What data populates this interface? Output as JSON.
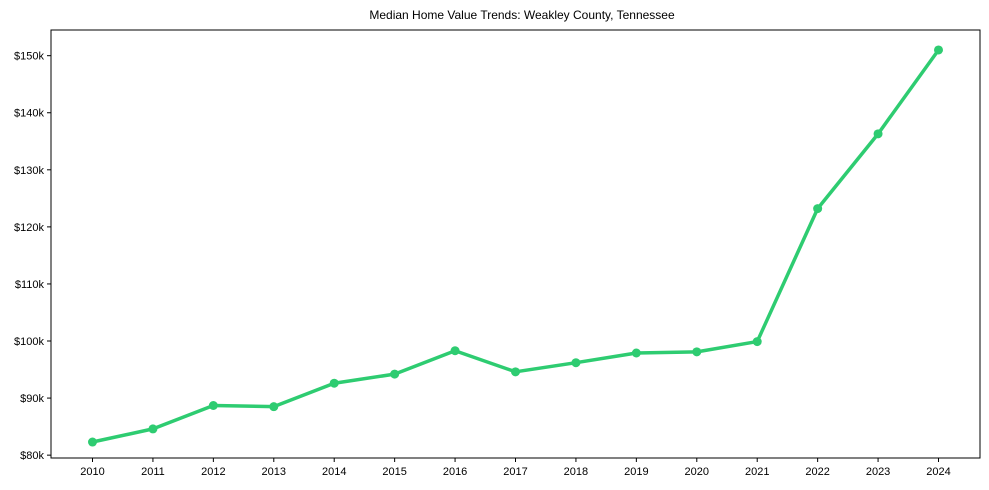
{
  "chart_data": {
    "type": "line",
    "title": "Median Home Value Trends: Weakley County, Tennessee",
    "xlabel": "",
    "ylabel": "",
    "categories": [
      "2010",
      "2011",
      "2012",
      "2013",
      "2014",
      "2015",
      "2016",
      "2017",
      "2018",
      "2019",
      "2020",
      "2021",
      "2022",
      "2023",
      "2024"
    ],
    "series": [
      {
        "name": "Median Home Value",
        "color": "#2ecc71",
        "values": [
          82300,
          84600,
          88700,
          88500,
          92600,
          94200,
          98300,
          94600,
          96200,
          97900,
          98100,
          99900,
          123200,
          136300,
          151000
        ]
      }
    ],
    "yticks": [
      80000,
      90000,
      100000,
      110000,
      120000,
      130000,
      140000,
      150000
    ],
    "ytick_labels": [
      "$80k",
      "$90k",
      "$100k",
      "$110k",
      "$120k",
      "$130k",
      "$140k",
      "$150k"
    ],
    "ylim": [
      79500,
      154500
    ],
    "grid": false,
    "legend": null,
    "marker": "circle"
  }
}
